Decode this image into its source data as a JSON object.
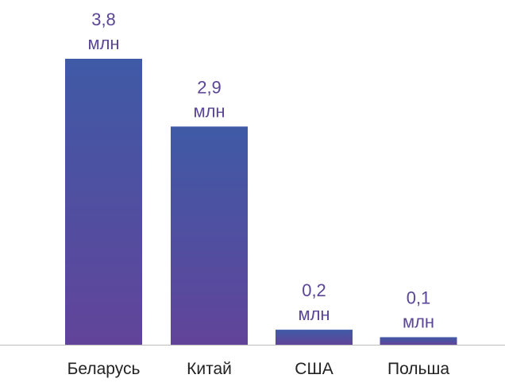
{
  "chart_data": {
    "type": "bar",
    "categories": [
      "Беларусь",
      "Китай",
      "США",
      "Польша"
    ],
    "values": [
      3.8,
      2.9,
      0.2,
      0.1
    ],
    "value_labels": [
      "3,8",
      "2,9",
      "0,2",
      "0,1"
    ],
    "unit": "млн",
    "title": "",
    "xlabel": "",
    "ylabel": "",
    "ylim": [
      0,
      3.8
    ],
    "grid": false,
    "legend": "none",
    "colors": {
      "bar_top": "#3f5aa6",
      "bar_bottom": "#61449a",
      "label": "#5a4597",
      "axis": "#bdbdbd"
    }
  }
}
